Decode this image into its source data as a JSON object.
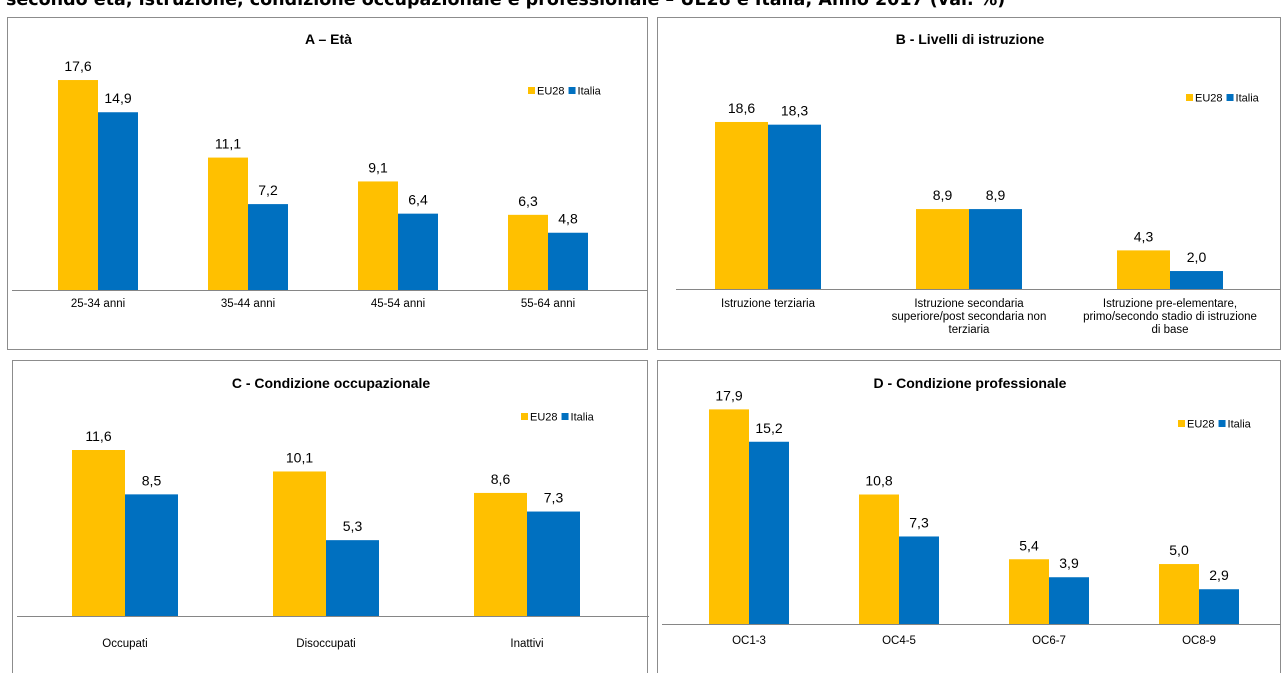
{
  "title": "secondo età, istruzione, condizione occupazionale e professionale – UE28 e Italia; Anno 2017 (val. %)",
  "colors": {
    "EU28": "#FFC000",
    "Italia": "#0070C0"
  },
  "chart_data": [
    {
      "type": "bar",
      "title": "A – Età",
      "categories": [
        [
          "25-34 anni"
        ],
        [
          "35-44 anni"
        ],
        [
          "45-54 anni"
        ],
        [
          "55-64 anni"
        ]
      ],
      "series": [
        {
          "name": "EU28",
          "values": [
            17.6,
            11.1,
            9.1,
            6.3
          ],
          "labels": [
            "17,6",
            "11,1",
            "9,1",
            "6,3"
          ]
        },
        {
          "name": "Italia",
          "values": [
            14.9,
            7.2,
            6.4,
            4.8
          ],
          "labels": [
            "14,9",
            "7,2",
            "6,4",
            "4,8"
          ]
        }
      ],
      "legend": "top-right",
      "grid": false
    },
    {
      "type": "bar",
      "title": "B - Livelli di istruzione",
      "categories": [
        [
          "Istruzione terziaria"
        ],
        [
          "Istruzione secondaria",
          "superiore/post secondaria non",
          "terziaria"
        ],
        [
          "Istruzione pre-elementare,",
          "primo/secondo stadio di istruzione",
          "di base"
        ]
      ],
      "series": [
        {
          "name": "EU28",
          "values": [
            18.6,
            8.9,
            4.3
          ],
          "labels": [
            "18,6",
            "8,9",
            "4,3"
          ]
        },
        {
          "name": "Italia",
          "values": [
            18.3,
            8.9,
            2.0
          ],
          "labels": [
            "18,3",
            "8,9",
            "2,0"
          ]
        }
      ],
      "legend": "top-right",
      "grid": false
    },
    {
      "type": "bar",
      "title": "C - Condizione occupazionale",
      "categories": [
        [
          "Occupati"
        ],
        [
          "Disoccupati"
        ],
        [
          "Inattivi"
        ]
      ],
      "series": [
        {
          "name": "EU28",
          "values": [
            11.6,
            10.1,
            8.6
          ],
          "labels": [
            "11,6",
            "10,1",
            "8,6"
          ]
        },
        {
          "name": "Italia",
          "values": [
            8.5,
            5.3,
            7.3
          ],
          "labels": [
            "8,5",
            "5,3",
            "7,3"
          ]
        }
      ],
      "legend": "top-right",
      "grid": false
    },
    {
      "type": "bar",
      "title": "D - Condizione professionale",
      "categories": [
        [
          "OC1-3"
        ],
        [
          "OC4-5"
        ],
        [
          "OC6-7"
        ],
        [
          "OC8-9"
        ]
      ],
      "series": [
        {
          "name": "EU28",
          "values": [
            17.9,
            10.8,
            5.4,
            5.0
          ],
          "labels": [
            "17,9",
            "10,8",
            "5,4",
            "5,0"
          ]
        },
        {
          "name": "Italia",
          "values": [
            15.2,
            7.3,
            3.9,
            2.9
          ],
          "labels": [
            "15,2",
            "7,3",
            "3,9",
            "2,9"
          ]
        }
      ],
      "legend": "top-right",
      "grid": false
    }
  ]
}
